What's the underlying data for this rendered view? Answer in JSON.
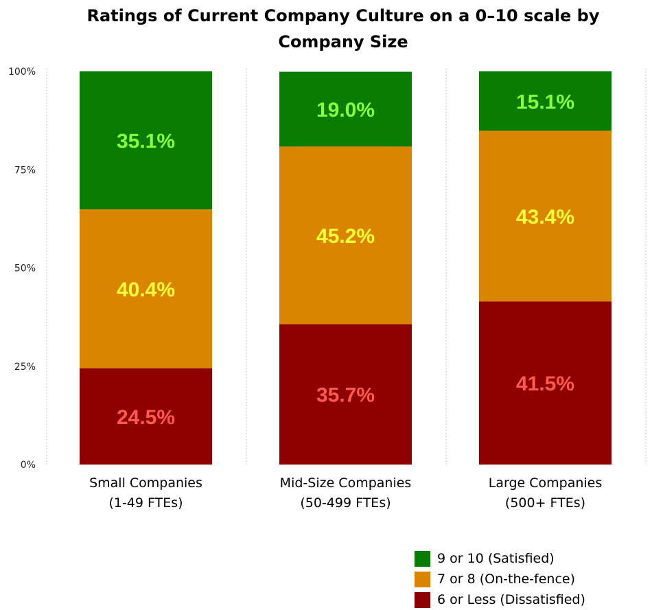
{
  "chart_data": {
    "type": "bar",
    "stacked": true,
    "title": "Ratings of Current Company Culture on a 0–10 scale by Company Size",
    "categories": [
      [
        "Small Companies",
        "(1-49 FTEs)"
      ],
      [
        "Mid-Size Companies",
        "(50-499 FTEs)"
      ],
      [
        "Large Companies",
        "(500+ FTEs)"
      ]
    ],
    "ylim": [
      0,
      100
    ],
    "yticks": [
      0,
      25,
      50,
      75,
      100
    ],
    "ytick_labels": [
      "0%",
      "25%",
      "50%",
      "75%",
      "100%"
    ],
    "grid": "vertical dotted separators",
    "legend_position": "bottom-right",
    "series": [
      {
        "name": "6 or Less (Dissatisfied)",
        "color": "#8e0000",
        "label_color": "#ff5a4e",
        "values": [
          24.5,
          35.7,
          41.5
        ],
        "labels": [
          "24.5%",
          "35.7%",
          "41.5%"
        ]
      },
      {
        "name": "7 or 8 (On-the-fence)",
        "color": "#d98500",
        "label_color": "#ffff33",
        "values": [
          40.4,
          45.2,
          43.4
        ],
        "labels": [
          "40.4%",
          "45.2%",
          "43.4%"
        ]
      },
      {
        "name": "9 or 10 (Satisfied)",
        "color": "#087d00",
        "label_color": "#8cff3c",
        "values": [
          35.1,
          19.0,
          15.1
        ],
        "labels": [
          "35.1%",
          "19.0%",
          "15.1%"
        ]
      }
    ],
    "legend_order": [
      2,
      1,
      0
    ]
  }
}
